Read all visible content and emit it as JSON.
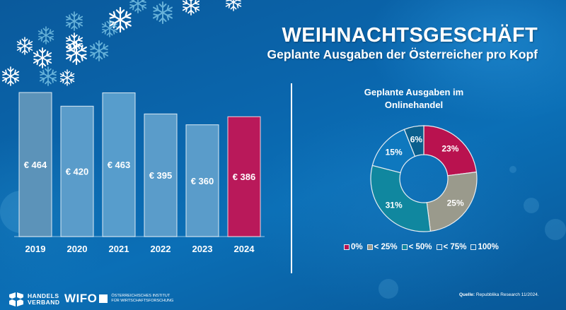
{
  "header": {
    "title": "WEIHNACHTSGESCHÄFT",
    "subtitle": "Geplante Ausgaben der Österreicher pro Kopf"
  },
  "chart_data": [
    {
      "type": "bar",
      "title": "Geplante Ausgaben der Österreicher pro Kopf",
      "categories": [
        "2019",
        "2020",
        "2021",
        "2022",
        "2023",
        "2024"
      ],
      "values": [
        464,
        420,
        463,
        395,
        360,
        386
      ],
      "value_labels": [
        "€ 464",
        "€ 420",
        "€ 463",
        "€ 395",
        "€ 360",
        "€ 386"
      ],
      "currency": "€",
      "xlabel": "",
      "ylabel": "",
      "ylim": [
        0,
        464
      ],
      "grid": false,
      "colors": [
        "#5c93b9",
        "#5a9cca",
        "#579dcc",
        "#5a9cca",
        "#5a9cca",
        "#b9195a"
      ],
      "highlight_category": "2024"
    },
    {
      "type": "pie",
      "title": "Geplante Ausgaben im Onlinehandel",
      "donut": true,
      "categories": [
        "0%",
        "< 25%",
        "< 50%",
        "< 75%",
        "100%"
      ],
      "values": [
        23,
        25,
        31,
        15,
        6
      ],
      "value_labels": [
        "23%",
        "25%",
        "31%",
        "15%",
        "6%"
      ],
      "colors": [
        "#b9124f",
        "#9a9a8c",
        "#10879f",
        "#0e78be",
        "#0b5f8d"
      ],
      "legend": "bottom"
    }
  ],
  "pie_title_lines": [
    "Geplante Ausgaben im",
    "Onlinehandel"
  ],
  "footer": {
    "logo_handelsverband": [
      "HANDELS",
      "VERBAND"
    ],
    "logo_wifo": "WIFO",
    "logo_wifo_sub": [
      "ÖSTERREICHISCHES INSTITUT",
      "FÜR WIRTSCHAFTSFORSCHUNG"
    ],
    "source_label": "Quelle:",
    "source_text": "Repubblika Research 11/2024."
  }
}
